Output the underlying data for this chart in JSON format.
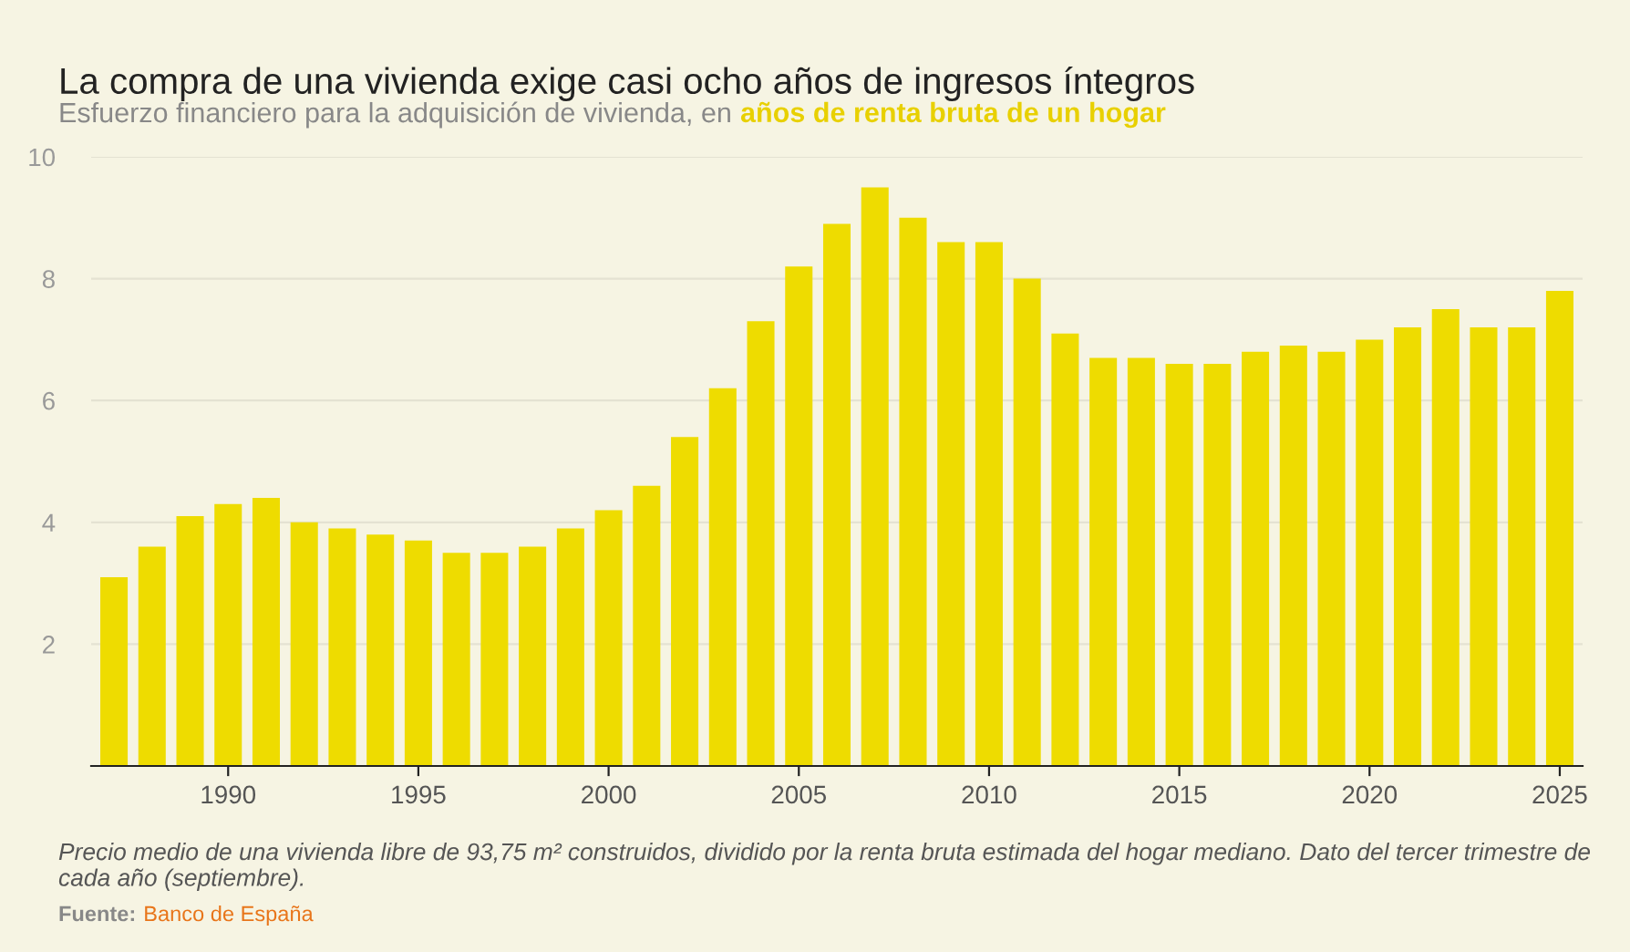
{
  "chart_data": {
    "type": "bar",
    "title": "La compra de una vivienda exige casi ocho años de ingresos íntegros",
    "subtitle": "Esfuerzo financiero para la adquisición de vivienda, en",
    "annotations": [
      "años de renta bruta de un hogar",
      "Precio medio de una vivienda libre de 93,75 m² construidos, dividido por la renta bruta estimada del hogar mediano. Dato del tercer trimestre de cada año (septiembre).",
      "Fuente:",
      "Banco de España"
    ],
    "x": [
      1987,
      1988,
      1989,
      1990,
      1991,
      1992,
      1993,
      1994,
      1995,
      1996,
      1997,
      1998,
      1999,
      2000,
      2001,
      2002,
      2003,
      2004,
      2005,
      2006,
      2007,
      2008,
      2009,
      2010,
      2011,
      2012,
      2013,
      2014,
      2015,
      2016,
      2017,
      2018,
      2019,
      2020,
      2021,
      2022,
      2023,
      2024,
      2025
    ],
    "values": [
      3.1,
      3.6,
      4.1,
      4.3,
      4.4,
      4.0,
      3.9,
      3.8,
      3.7,
      3.5,
      3.5,
      3.6,
      3.9,
      4.2,
      4.6,
      5.4,
      6.2,
      7.3,
      8.2,
      8.9,
      9.5,
      9.0,
      8.6,
      8.6,
      8.0,
      7.1,
      6.7,
      6.7,
      6.6,
      6.6,
      6.8,
      6.9,
      6.8,
      7.0,
      7.2,
      7.5,
      7.2,
      7.2,
      7.8
    ],
    "color": "#eedc00",
    "xlim": [
      1986.4,
      2025.6
    ],
    "xticks": [
      1990,
      1995,
      2000,
      2005,
      2010,
      2015,
      2020,
      2025
    ],
    "ylim": [
      0,
      10
    ],
    "yticks": [
      2,
      4,
      6,
      8,
      10
    ],
    "grid": "y",
    "legend": false
  }
}
